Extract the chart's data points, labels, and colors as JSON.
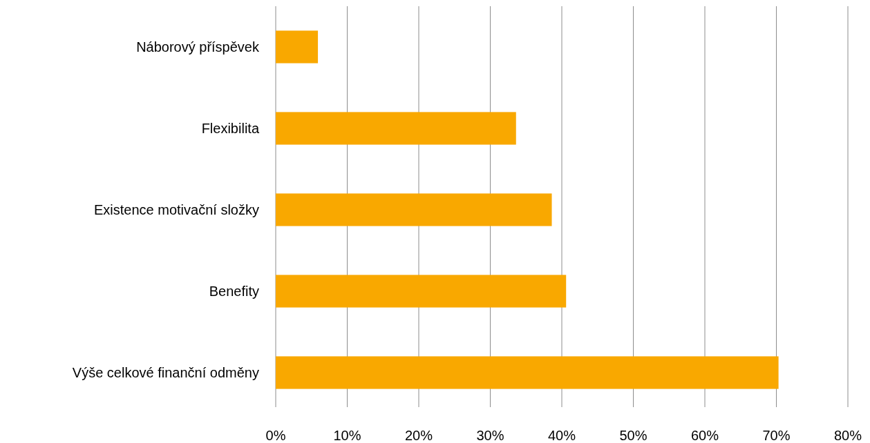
{
  "chart_data": {
    "type": "bar",
    "orientation": "horizontal",
    "categories": [
      "Náborový příspěvek",
      "Flexibilita",
      "Existence motivační složky",
      "Benefity",
      "Výše celkové finanční odměny"
    ],
    "values": [
      5.9,
      33.6,
      38.6,
      40.6,
      70.3
    ],
    "color": "#f9a800",
    "xlim": [
      0,
      80
    ],
    "xticks": [
      {
        "value": 0,
        "label": "0%"
      },
      {
        "value": 10,
        "label": "10%"
      },
      {
        "value": 20,
        "label": "20%"
      },
      {
        "value": 30,
        "label": "30%"
      },
      {
        "value": 40,
        "label": "40%"
      },
      {
        "value": 50,
        "label": "50%"
      },
      {
        "value": 60,
        "label": "60%"
      },
      {
        "value": 70,
        "label": "70%"
      },
      {
        "value": 80,
        "label": "80%"
      }
    ],
    "grid": "x"
  }
}
